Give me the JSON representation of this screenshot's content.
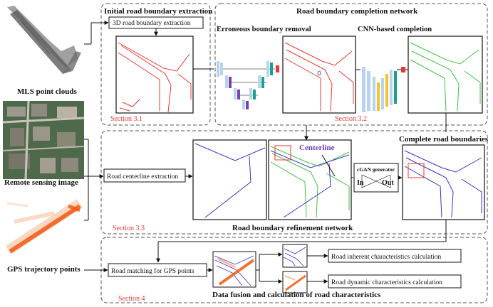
{
  "labels": {
    "mls": "MLS point clouds",
    "remote": "Remote sensing image",
    "gps": "GPS trajectory points",
    "initial_title": "Initial road boundary extraction",
    "box_3d": "3D road boundary extraction",
    "section_31": "Section 3.1",
    "completion_title": "Road boundary completion network",
    "erroneous": "Erroneous boundary removal",
    "cnn": "CNN-based completion",
    "section_32": "Section 3.2",
    "centerline_box": "Road centerline extraction",
    "centerline": "Centerline",
    "complete": "Complete road boundaries",
    "cgan": "cGAN generator",
    "in": "In",
    "out": "Out",
    "section_33": "Section 3.3",
    "refinement": "Road boundary refinement network",
    "matching": "Road matching for GPS points",
    "inherent": "Road inherent characteristics calculation",
    "dynamic": "Road dynamic characteristics calculation",
    "fusion": "Data fusion and calculation of road characteristics",
    "section_4": "Section 4"
  },
  "colors": {
    "boundary_red": "#e53935",
    "boundary_green": "#43c043",
    "centerline_blue": "#3535c0",
    "centerline_label": "#6b3fb5",
    "gps_orange": "#f05a14",
    "unet_light": "#b9d3ee",
    "unet_purple": "#7b3fb0",
    "unet_teal": "#1e9e8e",
    "unet_yellow": "#f2c230"
  }
}
